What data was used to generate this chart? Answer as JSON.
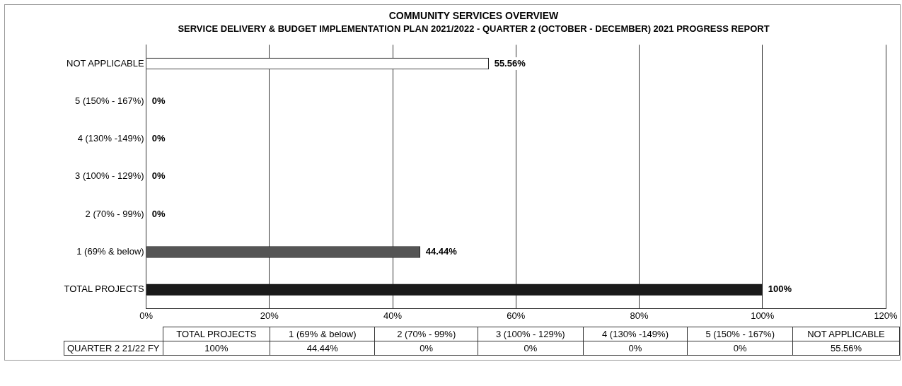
{
  "chart_data": {
    "type": "bar",
    "orientation": "horizontal",
    "title": "COMMUNITY SERVICES OVERVIEW",
    "subtitle": "SERVICE DELIVERY & BUDGET IMPLEMENTATION PLAN 2021/2022 - QUARTER 2 (OCTOBER - DECEMBER) 2021 PROGRESS REPORT",
    "categories": [
      "NOT APPLICABLE",
      "5 (150% - 167%)",
      "4 (130% -149%)",
      "3 (100% - 129%)",
      "2 (70% - 99%)",
      "1 (69% & below)",
      "TOTAL PROJECTS"
    ],
    "series": [
      {
        "name": "QUARTER 2 21/22 FY",
        "values": [
          55.56,
          0,
          0,
          0,
          0,
          44.44,
          100
        ],
        "colors": [
          "#ffffff",
          "#ffffff",
          "#ffffff",
          "#ffffff",
          "#ffffff",
          "#555555",
          "#1a1a1a"
        ],
        "value_labels": [
          "55.56%",
          "0%",
          "0%",
          "0%",
          "0%",
          "44.44%",
          "100%"
        ]
      }
    ],
    "xlim": [
      0,
      120
    ],
    "xticks": [
      {
        "value": 0,
        "label": "0%"
      },
      {
        "value": 20,
        "label": "20%"
      },
      {
        "value": 40,
        "label": "40%"
      },
      {
        "value": 60,
        "label": "60%"
      },
      {
        "value": 80,
        "label": "80%"
      },
      {
        "value": 100,
        "label": "100%"
      },
      {
        "value": 120,
        "label": "120%"
      }
    ],
    "grid": "x",
    "legend": false
  }
}
